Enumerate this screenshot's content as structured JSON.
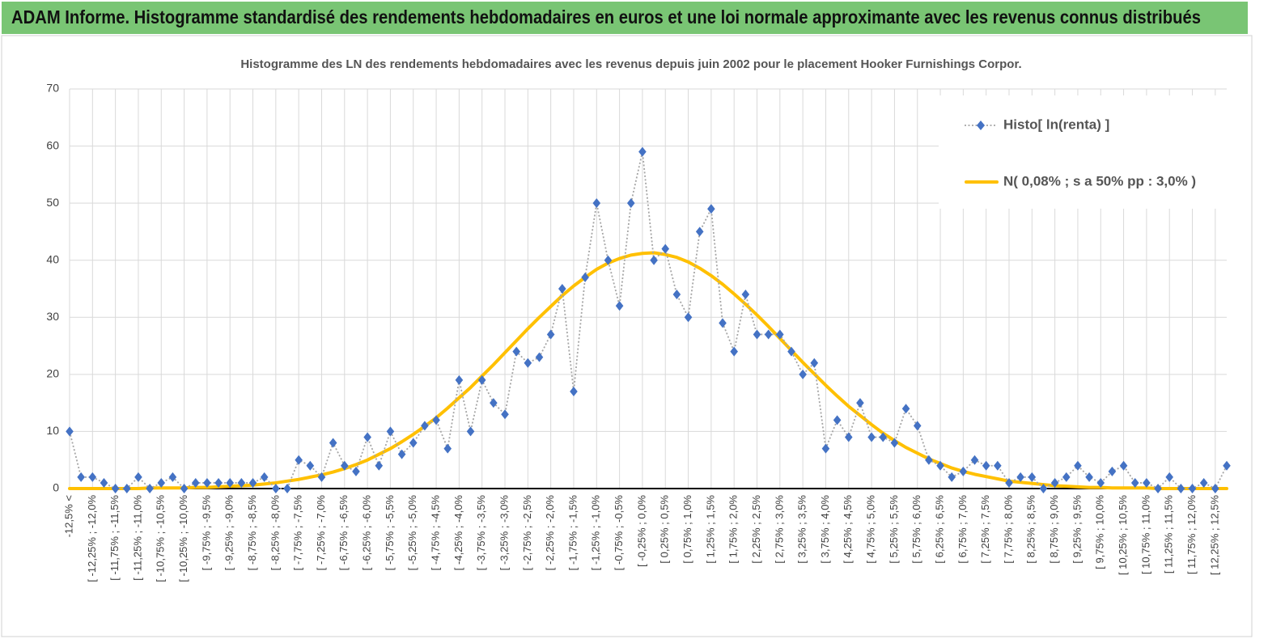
{
  "chart_data": {
    "type": "line",
    "header": "ADAM Informe. Histogramme standardisé des rendements hebdomadaires en euros et une loi normale approximante avec les revenus connus distribués",
    "title": "Histogramme  des LN des rendements hebdomadaires avec les revenus depuis juin 2002 pour le placement Hooker Furnishings Corpor.",
    "categories": [
      "-12,5% <",
      null,
      "[ -12,25% ; -12,0%",
      null,
      "[ -11,75% ; -11,5%",
      null,
      "[ -11,25% ; -11,0%",
      null,
      "[ -10,75% ; -10,5%",
      null,
      "[ -10,25% ; -10,0%",
      null,
      "[ -9,75% ; -9,5%",
      null,
      "[ -9,25% ; -9,0%",
      null,
      "[ -8,75% ; -8,5%",
      null,
      "[ -8,25% ; -8,0%",
      null,
      "[ -7,75% ; -7,5%",
      null,
      "[ -7,25% ; -7,0%",
      null,
      "[ -6,75% ; -6,5%",
      null,
      "[ -6,25% ; -6,0%",
      null,
      "[ -5,75% ; -5,5%",
      null,
      "[ -5,25% ; -5,0%",
      null,
      "[ -4,75% ; -4,5%",
      null,
      "[ -4,25% ; -4,0%",
      null,
      "[ -3,75% ; -3,5%",
      null,
      "[ -3,25% ; -3,0%",
      null,
      "[ -2,75% ; -2,5%",
      null,
      "[ -2,25% ; -2,0%",
      null,
      "[ -1,75% ; -1,5%",
      null,
      "[ -1,25% ; -1,0%",
      null,
      "[ -0,75% ; -0,5%",
      null,
      "[ -0,25% ; 0,0%",
      null,
      "[ 0,25% ; 0,5%",
      null,
      "[ 0,75% ; 1,0%",
      null,
      "[ 1,25% ; 1,5%",
      null,
      "[ 1,75% ; 2,0%",
      null,
      "[ 2,25% ; 2,5%",
      null,
      "[ 2,75% ; 3,0%",
      null,
      "[ 3,25% ; 3,5%",
      null,
      "[ 3,75% ; 4,0%",
      null,
      "[ 4,25% ; 4,5%",
      null,
      "[ 4,75% ; 5,0%",
      null,
      "[ 5,25% ; 5,5%",
      null,
      "[ 5,75% ; 6,0%",
      null,
      "[ 6,25% ; 6,5%",
      null,
      "[ 6,75% ; 7,0%",
      null,
      "[ 7,25% ; 7,5%",
      null,
      "[ 7,75% ; 8,0%",
      null,
      "[ 8,25% ; 8,5%",
      null,
      "[ 8,75% ; 9,0%",
      null,
      "[ 9,25% ; 9,5%",
      null,
      "[ 9,75% ; 10,0%",
      null,
      "[ 10,25% ; 10,5%",
      null,
      "[ 10,75% ; 11,0%",
      null,
      "[ 11,25% ; 11,5%",
      null,
      "[ 11,75% ; 12,0%",
      null,
      "[ 12,25% ; 12,5%",
      null
    ],
    "series": [
      {
        "name": "Histo[ ln(renta) ]",
        "color": "#4472c4",
        "line_color": "#a5a5a5",
        "marker": "diamond",
        "values": [
          10,
          2,
          2,
          1,
          0,
          0,
          2,
          0,
          1,
          2,
          0,
          1,
          1,
          1,
          1,
          1,
          1,
          2,
          0,
          0,
          5,
          4,
          2,
          8,
          4,
          3,
          9,
          4,
          10,
          6,
          8,
          11,
          12,
          7,
          19,
          10,
          19,
          15,
          13,
          24,
          22,
          23,
          27,
          35,
          17,
          37,
          50,
          40,
          32,
          50,
          59,
          40,
          42,
          34,
          30,
          45,
          49,
          29,
          24,
          34,
          27,
          27,
          27,
          24,
          20,
          22,
          7,
          12,
          9,
          15,
          9,
          9,
          8,
          14,
          11,
          5,
          4,
          2,
          3,
          5,
          4,
          4,
          1,
          2,
          2,
          0,
          1,
          2,
          4,
          2,
          1,
          3,
          4,
          1,
          1,
          0,
          2,
          0,
          0,
          1,
          0,
          4
        ]
      },
      {
        "name": "N( 0,08% ; s a 50% pp : 3,0% )",
        "color": "#ffc000",
        "marker": "none",
        "values": [
          0,
          0,
          0,
          0,
          0,
          0,
          0,
          0.1,
          0.1,
          0.1,
          0.1,
          0.2,
          0.2,
          0.3,
          0.4,
          0.5,
          0.6,
          0.8,
          1.0,
          1.3,
          1.6,
          2.0,
          2.4,
          2.9,
          3.5,
          4.2,
          5.0,
          6.0,
          7.0,
          8.2,
          9.5,
          10.9,
          12.4,
          14.1,
          15.9,
          17.7,
          19.7,
          21.7,
          23.8,
          25.9,
          28.0,
          30.0,
          31.9,
          33.8,
          35.5,
          37.0,
          38.4,
          39.5,
          40.3,
          40.9,
          41.2,
          41.3,
          41.0,
          40.5,
          39.7,
          38.6,
          37.3,
          35.8,
          34.1,
          32.3,
          30.4,
          28.4,
          26.3,
          24.2,
          22.1,
          20.1,
          18.1,
          16.2,
          14.4,
          12.8,
          11.2,
          9.7,
          8.4,
          7.2,
          6.2,
          5.2,
          4.4,
          3.6,
          3.0,
          2.5,
          2.1,
          1.7,
          1.3,
          1.1,
          0.9,
          0.7,
          0.5,
          0.4,
          0.3,
          0.2,
          0.2,
          0.1,
          0.1,
          0.1,
          0.1,
          0,
          0,
          0,
          0,
          0,
          0,
          0
        ]
      }
    ],
    "ylim": [
      0,
      70
    ],
    "yticks": [
      0,
      10,
      20,
      30,
      40,
      50,
      60,
      70
    ],
    "grid": true,
    "legend": "top-right"
  }
}
